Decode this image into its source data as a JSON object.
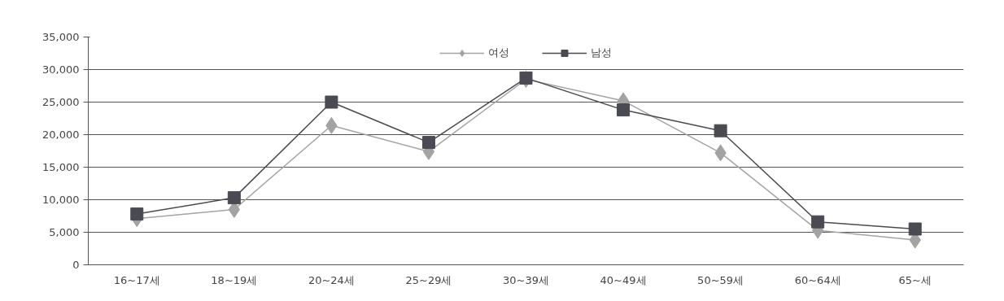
{
  "chart_data": {
    "type": "line",
    "categories": [
      "16~17세",
      "18~19세",
      "20~24세",
      "25~29세",
      "30~39세",
      "40~49세",
      "50~59세",
      "60~64세",
      "65~세"
    ],
    "series": [
      {
        "name": "여성",
        "color": "#a3a3a3",
        "marker": "diamond",
        "values": [
          7100,
          8500,
          21400,
          17400,
          28500,
          25200,
          17200,
          5300,
          3800
        ]
      },
      {
        "name": "남성",
        "color": "#4a4a52",
        "marker": "square",
        "values": [
          7800,
          10300,
          25000,
          18800,
          28700,
          23800,
          20600,
          6600,
          5500
        ]
      }
    ],
    "ylim": [
      0,
      35000
    ],
    "yticks": [
      {
        "value": 0,
        "label": "0"
      },
      {
        "value": 5000,
        "label": "5,000"
      },
      {
        "value": 10000,
        "label": "10,000"
      },
      {
        "value": 15000,
        "label": "15,000"
      },
      {
        "value": 20000,
        "label": "20,000"
      },
      {
        "value": 25000,
        "label": "25,000"
      },
      {
        "value": 30000,
        "label": "30,000"
      },
      {
        "value": 35000,
        "label": "35,000"
      }
    ],
    "grid": "y",
    "legend": "top",
    "line_style": "solid"
  }
}
